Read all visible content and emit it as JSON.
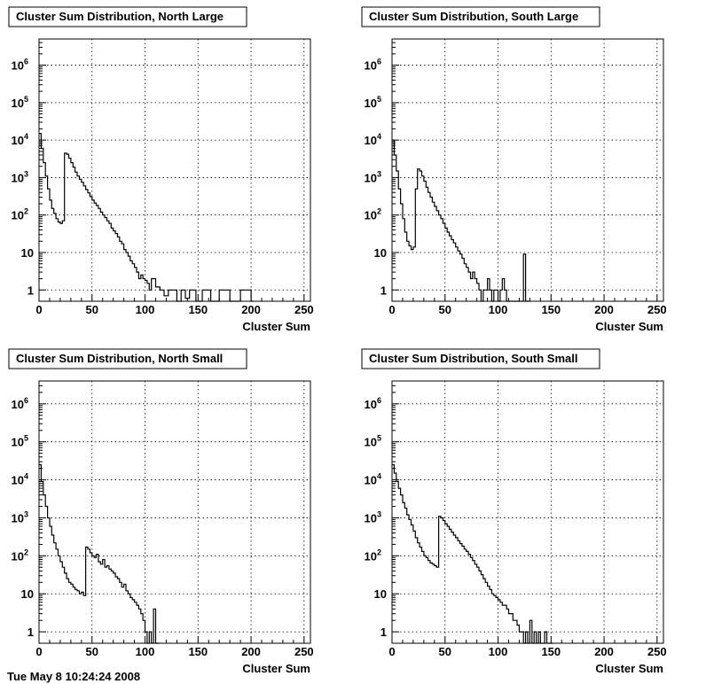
{
  "footer_text": "Tue May  8 10:24:24 2008",
  "chart_data": [
    {
      "type": "line",
      "title": "Cluster Sum Distribution, North Large",
      "xlabel": "Cluster Sum",
      "ylabel": "",
      "xlim": [
        0,
        256
      ],
      "ylim": [
        0.5,
        5000000
      ],
      "yscale": "log",
      "grid": true,
      "x_ticks": [
        0,
        50,
        100,
        150,
        200,
        250
      ],
      "y_ticks": [
        {
          "v": 1,
          "label": "1"
        },
        {
          "v": 10,
          "label": "10"
        },
        {
          "v": 100,
          "label": "10",
          "exp": "2"
        },
        {
          "v": 1000,
          "label": "10",
          "exp": "3"
        },
        {
          "v": 10000,
          "label": "10",
          "exp": "4"
        },
        {
          "v": 100000,
          "label": "10",
          "exp": "5"
        },
        {
          "v": 1000000,
          "label": "10",
          "exp": "6"
        }
      ],
      "x": [
        0,
        2,
        4,
        6,
        8,
        10,
        12,
        14,
        16,
        18,
        20,
        22,
        24,
        26,
        28,
        30,
        32,
        34,
        36,
        38,
        40,
        42,
        44,
        46,
        48,
        50,
        52,
        54,
        56,
        58,
        60,
        62,
        64,
        66,
        68,
        70,
        72,
        74,
        76,
        78,
        80,
        82,
        84,
        86,
        88,
        90,
        92,
        94,
        96,
        98,
        100,
        102,
        104,
        106,
        110,
        114,
        118,
        122,
        126,
        130,
        134,
        138,
        142,
        148,
        154,
        162,
        170,
        180,
        190,
        200
      ],
      "y": [
        15000,
        6000,
        2500,
        1100,
        500,
        250,
        150,
        110,
        80,
        65,
        60,
        70,
        4500,
        4200,
        3300,
        2500,
        1900,
        1400,
        1100,
        900,
        750,
        600,
        480,
        390,
        310,
        250,
        210,
        180,
        150,
        120,
        100,
        85,
        70,
        60,
        45,
        38,
        32,
        26,
        20,
        17,
        12,
        10,
        8,
        6,
        5,
        4,
        3,
        2,
        2.5,
        2,
        1.8,
        1.5,
        1,
        2,
        1.2,
        1,
        0.7,
        1,
        1,
        0.5,
        1,
        0.6,
        1,
        0.5,
        1,
        0.5,
        1,
        0.5,
        1,
        0.5
      ]
    },
    {
      "type": "line",
      "title": "Cluster Sum Distribution, South Large",
      "xlabel": "Cluster Sum",
      "ylabel": "",
      "xlim": [
        0,
        256
      ],
      "ylim": [
        0.5,
        5000000
      ],
      "yscale": "log",
      "grid": true,
      "x_ticks": [
        0,
        50,
        100,
        150,
        200,
        250
      ],
      "y_ticks": [
        {
          "v": 1,
          "label": "1"
        },
        {
          "v": 10,
          "label": "10"
        },
        {
          "v": 100,
          "label": "10",
          "exp": "2"
        },
        {
          "v": 1000,
          "label": "10",
          "exp": "3"
        },
        {
          "v": 10000,
          "label": "10",
          "exp": "4"
        },
        {
          "v": 100000,
          "label": "10",
          "exp": "5"
        },
        {
          "v": 1000000,
          "label": "10",
          "exp": "6"
        }
      ],
      "x": [
        0,
        2,
        4,
        6,
        8,
        10,
        12,
        14,
        16,
        18,
        20,
        22,
        24,
        26,
        28,
        30,
        32,
        34,
        36,
        38,
        40,
        42,
        44,
        46,
        48,
        50,
        52,
        54,
        56,
        58,
        60,
        62,
        64,
        66,
        68,
        70,
        72,
        74,
        76,
        78,
        80,
        82,
        84,
        86,
        88,
        90,
        92,
        94,
        96,
        98,
        100,
        102,
        104,
        106,
        108,
        110,
        112,
        114,
        116,
        118,
        120,
        122,
        124,
        126,
        128
      ],
      "y": [
        10000,
        4000,
        1500,
        500,
        200,
        80,
        35,
        20,
        15,
        12,
        14,
        500,
        1700,
        1500,
        1100,
        800,
        550,
        400,
        300,
        220,
        170,
        130,
        100,
        80,
        60,
        45,
        35,
        28,
        22,
        18,
        14,
        11,
        9,
        7,
        5,
        4,
        3,
        2,
        3,
        2,
        1.5,
        1,
        0.5,
        1,
        1,
        2,
        1,
        0.5,
        1,
        1,
        0.5,
        1,
        2,
        1,
        0.5,
        0.5,
        0.5,
        0.5,
        0.5,
        0.5,
        0.5,
        0.5,
        9,
        0.5,
        0.5
      ]
    },
    {
      "type": "line",
      "title": "Cluster Sum Distribution, North Small",
      "xlabel": "Cluster Sum",
      "ylabel": "",
      "xlim": [
        0,
        256
      ],
      "ylim": [
        0.5,
        4000000
      ],
      "yscale": "log",
      "grid": true,
      "x_ticks": [
        0,
        50,
        100,
        150,
        200,
        250
      ],
      "y_ticks": [
        {
          "v": 1,
          "label": "1"
        },
        {
          "v": 10,
          "label": "10"
        },
        {
          "v": 100,
          "label": "10",
          "exp": "2"
        },
        {
          "v": 1000,
          "label": "10",
          "exp": "3"
        },
        {
          "v": 10000,
          "label": "10",
          "exp": "4"
        },
        {
          "v": 100000,
          "label": "10",
          "exp": "5"
        },
        {
          "v": 1000000,
          "label": "10",
          "exp": "6"
        }
      ],
      "x": [
        0,
        2,
        4,
        6,
        8,
        10,
        12,
        14,
        16,
        18,
        20,
        22,
        24,
        26,
        28,
        30,
        32,
        34,
        36,
        38,
        40,
        42,
        44,
        46,
        48,
        50,
        52,
        54,
        56,
        58,
        60,
        62,
        64,
        66,
        68,
        70,
        72,
        74,
        76,
        78,
        80,
        82,
        84,
        86,
        88,
        90,
        92,
        94,
        96,
        98,
        100,
        102,
        104,
        106,
        108,
        110,
        112
      ],
      "y": [
        25000,
        9000,
        4000,
        2000,
        1000,
        600,
        350,
        220,
        150,
        100,
        70,
        50,
        35,
        25,
        20,
        18,
        15,
        13,
        12,
        10,
        11,
        9,
        170,
        150,
        120,
        100,
        90,
        110,
        70,
        60,
        80,
        50,
        55,
        45,
        40,
        35,
        28,
        25,
        20,
        15,
        18,
        12,
        10,
        8,
        7,
        6,
        5,
        4,
        3,
        2,
        1,
        0.5,
        1,
        0.5,
        4,
        0.5,
        0.5
      ]
    },
    {
      "type": "line",
      "title": "Cluster Sum Distribution, South Small",
      "xlabel": "Cluster Sum",
      "ylabel": "",
      "xlim": [
        0,
        256
      ],
      "ylim": [
        0.5,
        4000000
      ],
      "yscale": "log",
      "grid": true,
      "x_ticks": [
        0,
        50,
        100,
        150,
        200,
        250
      ],
      "y_ticks": [
        {
          "v": 1,
          "label": "1"
        },
        {
          "v": 10,
          "label": "10"
        },
        {
          "v": 100,
          "label": "10",
          "exp": "2"
        },
        {
          "v": 1000,
          "label": "10",
          "exp": "3"
        },
        {
          "v": 10000,
          "label": "10",
          "exp": "4"
        },
        {
          "v": 100000,
          "label": "10",
          "exp": "5"
        },
        {
          "v": 1000000,
          "label": "10",
          "exp": "6"
        }
      ],
      "x": [
        0,
        2,
        4,
        6,
        8,
        10,
        12,
        14,
        16,
        18,
        20,
        22,
        24,
        26,
        28,
        30,
        32,
        34,
        36,
        38,
        40,
        42,
        44,
        46,
        48,
        50,
        52,
        54,
        56,
        58,
        60,
        62,
        64,
        66,
        68,
        70,
        72,
        74,
        76,
        78,
        80,
        82,
        84,
        86,
        88,
        90,
        92,
        94,
        96,
        98,
        100,
        102,
        104,
        106,
        108,
        110,
        112,
        114,
        116,
        118,
        120,
        122,
        124,
        126,
        128,
        130,
        132,
        134,
        136,
        138,
        140,
        142,
        144,
        146,
        148,
        150
      ],
      "y": [
        25000,
        15000,
        9000,
        6000,
        4000,
        2500,
        1800,
        1200,
        900,
        650,
        450,
        300,
        220,
        170,
        130,
        100,
        90,
        75,
        65,
        60,
        55,
        50,
        1100,
        1000,
        850,
        700,
        600,
        500,
        420,
        350,
        300,
        250,
        210,
        180,
        150,
        130,
        110,
        90,
        75,
        60,
        50,
        40,
        32,
        25,
        20,
        16,
        13,
        10,
        9,
        8,
        7,
        6,
        5,
        5,
        4,
        3,
        3,
        2,
        2,
        1.5,
        1,
        1,
        0.5,
        1,
        0.5,
        2,
        0.5,
        1,
        0.5,
        1,
        0.5,
        0.5,
        1,
        0.5,
        0.5,
        0.5
      ]
    }
  ]
}
